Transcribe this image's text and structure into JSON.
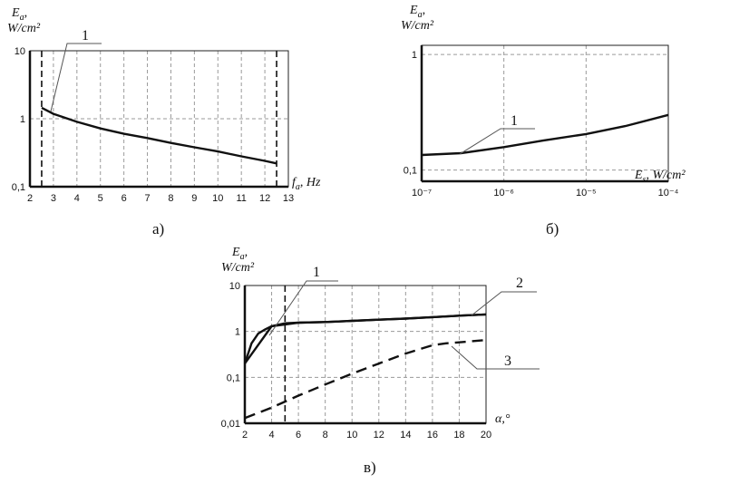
{
  "chart_data": [
    {
      "id": "a",
      "type": "line",
      "caption": "а)",
      "ylabel": "E",
      "ylabel_sub": "a",
      "ylabel_unit": "W/cm²",
      "xlabel": "f",
      "xlabel_sub": "a",
      "xlabel_unit": ", Hz",
      "xlim": [
        2,
        13
      ],
      "ylim": [
        0.1,
        10
      ],
      "yscale": "log",
      "xticks": [
        "2",
        "3",
        "4",
        "5",
        "6",
        "7",
        "8",
        "9",
        "10",
        "11",
        "12",
        "13"
      ],
      "yticks": [
        "0,1",
        "1",
        "10"
      ],
      "grid": true,
      "vlines": [
        2.5,
        12.5
      ],
      "series": [
        {
          "name": "1",
          "x": [
            2.5,
            3,
            4,
            5,
            6,
            7,
            8,
            9,
            10,
            11,
            12,
            12.5
          ],
          "y": [
            1.45,
            1.18,
            0.9,
            0.72,
            0.6,
            0.52,
            0.44,
            0.38,
            0.33,
            0.28,
            0.24,
            0.22
          ]
        }
      ]
    },
    {
      "id": "b",
      "type": "line",
      "caption": "б)",
      "ylabel": "E",
      "ylabel_sub": "a",
      "ylabel_unit": "W/cm²",
      "xlabel": "E",
      "xlabel_sub": "s",
      "xlabel_unit": ", W/cm²",
      "xscale": "log",
      "yscale": "log",
      "xlim": [
        1e-07,
        0.0001
      ],
      "ylim": [
        0.08,
        1.2
      ],
      "xticks": [
        "10⁻⁷",
        "10⁻⁶",
        "10⁻⁵",
        "10⁻⁴"
      ],
      "yticks": [
        "0,1",
        "1"
      ],
      "grid": true,
      "series": [
        {
          "name": "1",
          "x": [
            1e-07,
            3e-07,
            1e-06,
            3e-06,
            1e-05,
            3e-05,
            0.0001
          ],
          "y": [
            0.135,
            0.14,
            0.158,
            0.18,
            0.205,
            0.24,
            0.3
          ]
        }
      ]
    },
    {
      "id": "c",
      "type": "line",
      "caption": "в)",
      "ylabel": "E",
      "ylabel_sub": "a",
      "ylabel_unit": "W/cm²",
      "xlabel": "α,°",
      "xlim": [
        2,
        20
      ],
      "ylim": [
        0.01,
        10
      ],
      "yscale": "log",
      "xticks": [
        "2",
        "4",
        "6",
        "8",
        "10",
        "12",
        "14",
        "16",
        "18",
        "20"
      ],
      "yticks": [
        "0,01",
        "0,1",
        "1",
        "10"
      ],
      "grid": true,
      "vlines": [
        5
      ],
      "series": [
        {
          "name": "1",
          "x": [
            2,
            2.5,
            3,
            3.5,
            4,
            5,
            6,
            8,
            10,
            12,
            14,
            16,
            18,
            20
          ],
          "y": [
            0.2,
            0.55,
            0.9,
            1.1,
            1.3,
            1.5,
            1.55,
            1.6,
            1.7,
            1.8,
            1.9,
            2.05,
            2.2,
            2.35
          ]
        },
        {
          "name": "2",
          "x": [
            2,
            4,
            6,
            8,
            10,
            12,
            14,
            16,
            18,
            20
          ],
          "y": [
            0.2,
            1.3,
            1.55,
            1.6,
            1.7,
            1.8,
            1.9,
            2.05,
            2.2,
            2.35
          ]
        },
        {
          "name": "3",
          "style": "dashed",
          "x": [
            2,
            4,
            6,
            8,
            10,
            12,
            14,
            16,
            17,
            18,
            20
          ],
          "y": [
            0.013,
            0.022,
            0.04,
            0.07,
            0.12,
            0.2,
            0.33,
            0.5,
            0.55,
            0.58,
            0.65
          ]
        }
      ]
    }
  ]
}
